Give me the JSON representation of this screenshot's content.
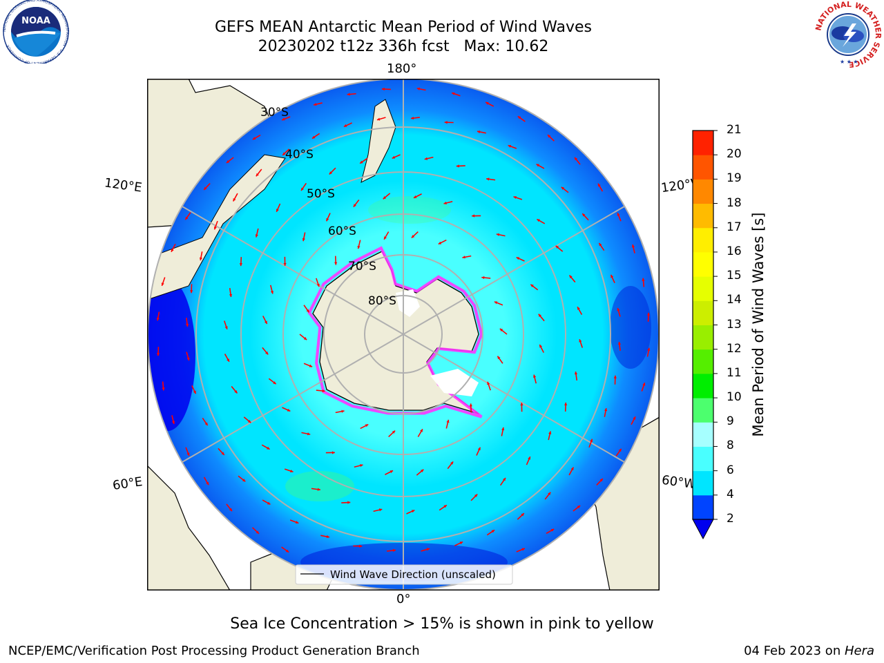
{
  "title": {
    "line1": "GEFS MEAN Antarctic Mean Period of Wind Waves",
    "line2": "20230202 t12z 336h fcst   Max: 10.62"
  },
  "logos": {
    "noaa": "NOAA",
    "noaa_ring": "NATIONAL OCEANIC AND ATMOSPHERIC ADMINISTRATION · U.S. DEPARTMENT OF COMMERCE",
    "nws_ring": "NATIONAL WEATHER SERVICE"
  },
  "map": {
    "projection": "south-polar-stereographic",
    "longitude_labels": [
      "180°",
      "120°E",
      "120°W",
      "60°E",
      "60°W",
      "0°"
    ],
    "latitude_labels": [
      "30°S",
      "40°S",
      "50°S",
      "60°S",
      "70°S",
      "80°S"
    ],
    "legend_entry": "Wind Wave Direction (unscaled)",
    "colors": {
      "land": "#efedd9",
      "coast": "#000000",
      "graticule": "#b0b0b0",
      "arrows": "#ff0000",
      "ice_edge": "#ff33ff"
    }
  },
  "colorbar": {
    "label": "Mean Period of Wind Waves [s]",
    "ticks": [
      "2",
      "4",
      "6",
      "8",
      "9",
      "10",
      "11",
      "12",
      "13",
      "14",
      "15",
      "16",
      "17",
      "18",
      "19",
      "20",
      "21"
    ],
    "colors": [
      "#0044ff",
      "#00e5ff",
      "#49ffff",
      "#a6ffff",
      "#4cff6e",
      "#00ee00",
      "#55ee00",
      "#99ee00",
      "#ccee00",
      "#e6ff00",
      "#ffff00",
      "#ffee00",
      "#ffbb00",
      "#ff8800",
      "#ff5500",
      "#ff2200",
      "#ff0000"
    ],
    "under_color": "#0000ee"
  },
  "note": "Sea Ice Concentration > 15% is shown in pink to yellow",
  "footer": {
    "left": "NCEP/EMC/Verification Post Processing Product Generation Branch",
    "date": "04 Feb 2023 on ",
    "machine": "Hera"
  }
}
